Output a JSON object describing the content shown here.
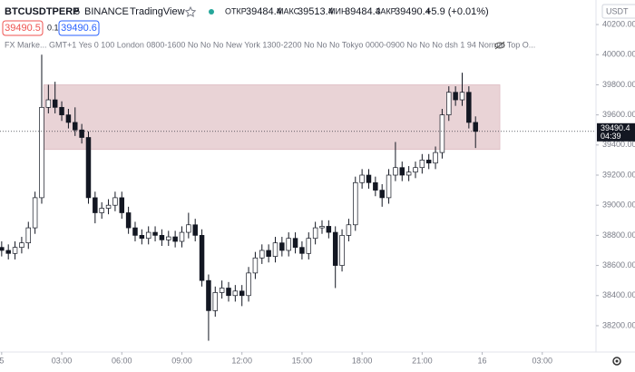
{
  "header": {
    "symbol": "BTCUSDTPERP",
    "interval": "5",
    "exchange": "BINANCE",
    "platform": "TradingView",
    "ohlc": [
      {
        "label": "ОТКР",
        "value": "39484.4"
      },
      {
        "label": "МАКС",
        "value": "39513.4"
      },
      {
        "label": "МИН",
        "value": "39484.4"
      },
      {
        "label": "ЗАКР",
        "value": "39490.4"
      }
    ],
    "change": "+5.9 (+0.01%)"
  },
  "buttons": {
    "sell": "39490.5",
    "step": "0.1",
    "buy": "39490.6"
  },
  "indicator": "FX Marke... GMT+1 Yes 0 100 London 0800-1600 No No No New York 1300-2200 No No No Tokyo 0000-0900 No No No dsh 1 94 Normal Top O...",
  "currency": "USDT",
  "price_tag": {
    "price": 39490.4,
    "countdown": "04:39"
  },
  "chart_data": {
    "type": "candlestick",
    "x": [
      0,
      20,
      40,
      60,
      80,
      100,
      120,
      140,
      160,
      180,
      200,
      220,
      240,
      260,
      280,
      300,
      320,
      340,
      360,
      380,
      400,
      420,
      440,
      460,
      480,
      500,
      520,
      540,
      560,
      580,
      600,
      620,
      640,
      660,
      680,
      700,
      720,
      740,
      760,
      780,
      800,
      820,
      840,
      860,
      880,
      900,
      920,
      940,
      960,
      980,
      1000,
      1020,
      1040,
      1060,
      1080,
      1100,
      1120,
      1140,
      1160,
      1180,
      1200,
      1220,
      1240,
      1260,
      1280,
      1300,
      1320,
      1340,
      1360,
      1380,
      1400,
      1420
    ],
    "open": [
      38720,
      38700,
      38680,
      38720,
      38750,
      38850,
      39050,
      39650,
      39700,
      39650,
      39600,
      39550,
      39500,
      39450,
      39050,
      38950,
      38980,
      39000,
      39050,
      38950,
      38850,
      38800,
      38780,
      38820,
      38800,
      38770,
      38790,
      38760,
      38820,
      38870,
      38800,
      38500,
      38300,
      38420,
      38450,
      38400,
      38430,
      38400,
      38550,
      38650,
      38700,
      38660,
      38750,
      38700,
      38780,
      38720,
      38680,
      38780,
      38850,
      38860,
      38820,
      38600,
      38800,
      38870,
      39150,
      39200,
      39150,
      39100,
      39050,
      39200,
      39250,
      39200,
      39220,
      39250,
      39300,
      39280,
      39350,
      39600,
      39750,
      39700,
      39750,
      39550
    ],
    "high": [
      38760,
      38740,
      38760,
      38790,
      38890,
      39090,
      40000,
      39800,
      39820,
      39690,
      39640,
      39650,
      39540,
      39490,
      39090,
      39020,
      39040,
      39090,
      39090,
      38990,
      38890,
      38840,
      38860,
      38860,
      38840,
      38830,
      38830,
      38860,
      38950,
      38910,
      38840,
      38540,
      38460,
      38500,
      38490,
      38470,
      38470,
      38590,
      38690,
      38740,
      38740,
      38790,
      38790,
      38820,
      38820,
      38760,
      38820,
      38890,
      38900,
      38900,
      38860,
      38840,
      38910,
      39190,
      39240,
      39240,
      39190,
      39140,
      39240,
      39420,
      39290,
      39260,
      39290,
      39340,
      39340,
      39390,
      39640,
      39790,
      39790,
      39880,
      39790,
      39590
    ],
    "low": [
      38660,
      38640,
      38640,
      38680,
      38710,
      38810,
      39010,
      39610,
      39610,
      39560,
      39510,
      39460,
      39410,
      39010,
      38880,
      38910,
      38940,
      38960,
      38910,
      38810,
      38760,
      38740,
      38740,
      38760,
      38730,
      38730,
      38720,
      38720,
      38780,
      38760,
      38460,
      38100,
      38260,
      38380,
      38360,
      38360,
      38330,
      38360,
      38510,
      38610,
      38620,
      38620,
      38660,
      38660,
      38680,
      38640,
      38640,
      38740,
      38810,
      38780,
      38450,
      38560,
      38760,
      38830,
      39110,
      39110,
      39060,
      38990,
      39010,
      39160,
      39160,
      39160,
      39180,
      39210,
      39240,
      39240,
      39310,
      39560,
      39660,
      39660,
      39510,
      39380
    ],
    "close": [
      38700,
      38680,
      38720,
      38750,
      38850,
      39050,
      39650,
      39700,
      39650,
      39600,
      39550,
      39500,
      39450,
      39050,
      38950,
      38980,
      39000,
      39050,
      38950,
      38850,
      38800,
      38780,
      38820,
      38800,
      38770,
      38790,
      38760,
      38820,
      38870,
      38800,
      38500,
      38300,
      38420,
      38450,
      38400,
      38430,
      38400,
      38550,
      38650,
      38700,
      38660,
      38750,
      38700,
      38780,
      38720,
      38680,
      38780,
      38850,
      38860,
      38820,
      38600,
      38800,
      38870,
      39150,
      39200,
      39150,
      39100,
      39050,
      39200,
      39250,
      39200,
      39220,
      39250,
      39300,
      39280,
      39350,
      39600,
      39750,
      39700,
      39750,
      39550,
      39490.4
    ],
    "up_color": "#ffffff",
    "down_color": "#131722",
    "wick_color": "#131722",
    "zone": {
      "low": 39370,
      "high": 39800,
      "start": 126,
      "end": 1493,
      "color": "#e9d3d6"
    },
    "xlim": [
      -5,
      1781
    ],
    "ylim": [
      38025,
      40363
    ],
    "xticks": [
      {
        "value": 0,
        "label": "5"
      },
      {
        "value": 180,
        "label": "03:00"
      },
      {
        "value": 360,
        "label": "06:00"
      },
      {
        "value": 540,
        "label": "09:00"
      },
      {
        "value": 720,
        "label": "12:00"
      },
      {
        "value": 900,
        "label": "15:00"
      },
      {
        "value": 1080,
        "label": "18:00"
      },
      {
        "value": 1260,
        "label": "21:00"
      },
      {
        "value": 1440,
        "label": "16"
      },
      {
        "value": 1620,
        "label": "03:00"
      }
    ],
    "yticks": [
      {
        "value": 40200,
        "label": "40200.00"
      },
      {
        "value": 40000,
        "label": "40000.00"
      },
      {
        "value": 39800,
        "label": "39800.00"
      },
      {
        "value": 39600,
        "label": "39600.00"
      },
      {
        "value": 39400,
        "label": "39400.00"
      },
      {
        "value": 39200,
        "label": "39200.00"
      },
      {
        "value": 39000,
        "label": "39000.00"
      },
      {
        "value": 38800,
        "label": "38800.00"
      },
      {
        "value": 38600,
        "label": "38600.00"
      },
      {
        "value": 38400,
        "label": "38400.00"
      },
      {
        "value": 38200,
        "label": "38200.00"
      }
    ]
  }
}
